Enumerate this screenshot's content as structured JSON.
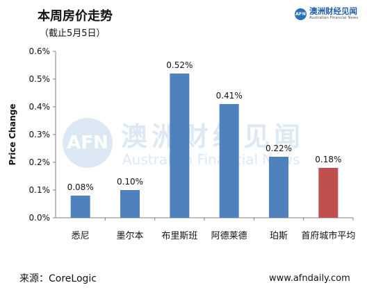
{
  "header": {
    "title": "本周房价走势",
    "subtitle": "（截止5月5日）"
  },
  "brand": {
    "logo_text": "AFN",
    "name": "澳洲财经见闻",
    "name_en": "Australian Financial News",
    "color": "#1f5fa8"
  },
  "watermark": {
    "logo_text": "AFN",
    "cn": "澳洲财经见闻",
    "en": "Australian Financial News"
  },
  "chart_data": {
    "type": "bar",
    "title": "本周房价走势",
    "subtitle": "（截止5月5日）",
    "xlabel": "",
    "ylabel": "Price Change",
    "categories": [
      "悉尼",
      "墨尔本",
      "布里斯班",
      "阿德莱德",
      "珀斯",
      "首府城市平均"
    ],
    "values": [
      0.08,
      0.1,
      0.52,
      0.41,
      0.22,
      0.18
    ],
    "data_labels": [
      "0.08%",
      "0.10%",
      "0.52%",
      "0.41%",
      "0.22%",
      "0.18%"
    ],
    "ylim": [
      0,
      0.6
    ],
    "yticks": [
      0,
      0.1,
      0.2,
      0.3,
      0.4,
      0.5,
      0.6
    ],
    "ytick_labels": [
      "0.0%",
      "0.1%",
      "0.2%",
      "0.3%",
      "0.4%",
      "0.5%",
      "0.6%"
    ],
    "grid": false,
    "legend": "none",
    "colors": [
      "#4f81bd",
      "#4f81bd",
      "#4f81bd",
      "#4f81bd",
      "#4f81bd",
      "#c0504d"
    ]
  },
  "footer": {
    "source": "来源：CoreLogic",
    "url": "www.afndaily.com"
  }
}
